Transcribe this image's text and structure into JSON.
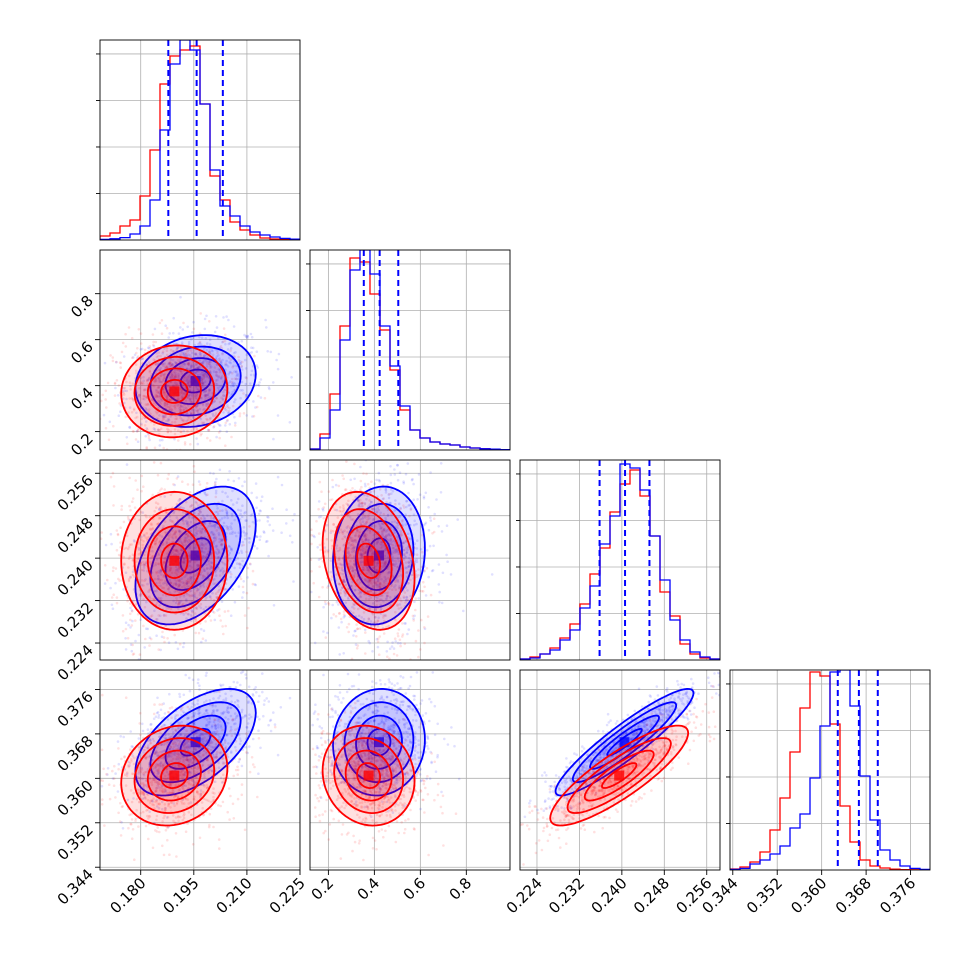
{
  "figure": {
    "type": "corner-plot"
  },
  "colors": {
    "series_a": "#0000ff",
    "series_b": "#ff0000",
    "frame": "#000000",
    "grid": "#b0b0b0"
  },
  "chart_data": {
    "type": "corner",
    "parameters": [
      {
        "range": [
          0.1685,
          0.225
        ],
        "ticks": [
          0.18,
          0.195,
          0.21,
          0.225
        ],
        "tick_labels": [
          "0.180",
          "0.195",
          "0.210",
          "0.225"
        ]
      },
      {
        "range": [
          0.12,
          0.99
        ],
        "ticks": [
          0.2,
          0.4,
          0.6,
          0.8
        ],
        "tick_labels": [
          "0.2",
          "0.4",
          "0.6",
          "0.8"
        ]
      },
      {
        "range": [
          0.2208,
          0.2585
        ],
        "ticks": [
          0.224,
          0.232,
          0.24,
          0.248,
          0.256
        ],
        "tick_labels": [
          "0.224",
          "0.232",
          "0.240",
          "0.248",
          "0.256"
        ]
      },
      {
        "range": [
          0.3435,
          0.3795
        ],
        "ticks": [
          0.344,
          0.352,
          0.36,
          0.368,
          0.376
        ],
        "tick_labels": [
          "0.344",
          "0.352",
          "0.360",
          "0.368",
          "0.376"
        ]
      }
    ],
    "series": [
      {
        "color": "#0000ff",
        "quantiles": [
          [
            0.1878,
            0.1958,
            0.2032
          ],
          [
            0.354,
            0.423,
            0.504
          ],
          [
            0.2358,
            0.2406,
            0.2452
          ],
          [
            0.3629,
            0.3667,
            0.3701
          ]
        ],
        "mean": [
          0.1955,
          0.42,
          0.2405,
          0.3665
        ],
        "std": [
          0.0085,
          0.1,
          0.0065,
          0.0048
        ],
        "corr": [
          [
            1,
            0.15,
            0.45,
            0.55
          ],
          [
            0.15,
            1,
            0.1,
            0.05
          ],
          [
            0.45,
            0.1,
            1,
            0.92
          ],
          [
            0.55,
            0.05,
            0.92,
            1
          ]
        ]
      },
      {
        "color": "#ff0000",
        "mean": [
          0.1895,
          0.375,
          0.2395,
          0.3605
        ],
        "std": [
          0.0075,
          0.1,
          0.0065,
          0.0045
        ],
        "corr": [
          [
            1,
            0.05,
            0.0,
            0.15
          ],
          [
            0.05,
            1,
            -0.25,
            -0.1
          ],
          [
            0.0,
            -0.25,
            1,
            0.85
          ],
          [
            0.15,
            -0.1,
            0.85,
            1
          ]
        ]
      }
    ],
    "histograms": [
      {
        "blue": [
          0.003,
          0.006,
          0.012,
          0.03,
          0.07,
          0.2,
          0.55,
          0.88,
          1.0,
          0.95,
          0.68,
          0.35,
          0.17,
          0.12,
          0.07,
          0.04,
          0.025,
          0.015,
          0.008,
          0.004
        ],
        "red": [
          0.02,
          0.035,
          0.07,
          0.1,
          0.22,
          0.45,
          0.78,
          0.92,
          0.95,
          0.97,
          0.68,
          0.32,
          0.2,
          0.09,
          0.05,
          0.025,
          0.01,
          0.005,
          0.002,
          0.001
        ]
      },
      {
        "blue": [
          0.005,
          0.06,
          0.2,
          0.55,
          0.9,
          1.0,
          0.88,
          0.62,
          0.42,
          0.22,
          0.1,
          0.06,
          0.04,
          0.03,
          0.025,
          0.015,
          0.01,
          0.006,
          0.004,
          0.002
        ],
        "red": [
          0.005,
          0.08,
          0.28,
          0.62,
          0.96,
          0.94,
          0.78,
          0.6,
          0.4,
          0.2,
          0.1,
          0.06,
          0.04,
          0.03,
          0.025,
          0.015,
          0.01,
          0.006,
          0.004,
          0.002
        ]
      },
      {
        "blue": [
          0.005,
          0.01,
          0.03,
          0.05,
          0.1,
          0.15,
          0.26,
          0.37,
          0.58,
          0.72,
          0.98,
          0.96,
          0.85,
          0.62,
          0.4,
          0.2,
          0.1,
          0.04,
          0.015,
          0.005
        ],
        "red": [
          0.005,
          0.015,
          0.03,
          0.06,
          0.11,
          0.18,
          0.28,
          0.43,
          0.56,
          0.74,
          0.88,
          0.95,
          0.82,
          0.62,
          0.34,
          0.22,
          0.08,
          0.03,
          0.01,
          0.005
        ]
      },
      {
        "blue": [
          0.003,
          0.008,
          0.03,
          0.05,
          0.08,
          0.12,
          0.21,
          0.28,
          0.46,
          0.72,
          0.99,
          1.0,
          0.82,
          0.47,
          0.25,
          0.1,
          0.05,
          0.02,
          0.008,
          0.003
        ],
        "red": [
          0.005,
          0.015,
          0.04,
          0.09,
          0.2,
          0.36,
          0.59,
          0.81,
          0.99,
          0.97,
          0.73,
          0.32,
          0.14,
          0.05,
          0.02,
          0.01,
          0.004,
          0.002,
          0.001,
          0.0
        ]
      }
    ]
  }
}
